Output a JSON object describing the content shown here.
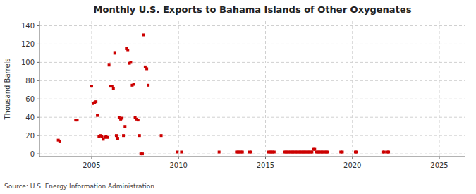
{
  "chart_data": {
    "type": "scatter",
    "title": "Monthly U.S. Exports to Bahama Islands of Other Oxygenates",
    "ylabel": "Thousand Barrels",
    "annotations": [
      "Source: U.S. Energy Information Administration"
    ],
    "color": "#cc0000",
    "marker": "square",
    "grid": true,
    "xlim": [
      2002.0,
      2026.5
    ],
    "ylim": [
      -3,
      145
    ],
    "xticks": [
      2005,
      2010,
      2015,
      2020,
      2025
    ],
    "yticks": [
      0,
      20,
      40,
      60,
      80,
      100,
      120,
      140
    ],
    "x": [
      2003.08,
      2003.17,
      2004.08,
      2004.17,
      2005.0,
      2005.08,
      2005.17,
      2005.25,
      2005.33,
      2005.42,
      2005.5,
      2005.58,
      2005.67,
      2005.75,
      2005.83,
      2005.92,
      2006.0,
      2006.08,
      2006.17,
      2006.25,
      2006.33,
      2006.42,
      2006.5,
      2006.58,
      2006.67,
      2006.75,
      2006.83,
      2006.92,
      2007.0,
      2007.08,
      2007.17,
      2007.25,
      2007.33,
      2007.42,
      2007.5,
      2007.58,
      2007.67,
      2007.75,
      2007.83,
      2007.92,
      2008.0,
      2008.08,
      2008.17,
      2008.25,
      2009.0,
      2009.92,
      2010.17,
      2012.33,
      2013.33,
      2013.42,
      2013.5,
      2013.58,
      2013.67,
      2014.08,
      2014.17,
      2015.17,
      2015.25,
      2015.33,
      2015.42,
      2015.5,
      2016.08,
      2016.17,
      2016.25,
      2016.33,
      2016.42,
      2016.5,
      2016.58,
      2016.67,
      2016.75,
      2016.83,
      2016.92,
      2017.0,
      2017.08,
      2017.17,
      2017.25,
      2017.33,
      2017.42,
      2017.5,
      2017.58,
      2017.67,
      2017.75,
      2017.83,
      2017.92,
      2018.0,
      2018.08,
      2018.17,
      2018.25,
      2018.33,
      2018.42,
      2018.5,
      2018.58,
      2019.33,
      2019.42,
      2020.17,
      2020.25,
      2021.75,
      2021.83,
      2022.0,
      2022.08
    ],
    "values": [
      15,
      14,
      37,
      37,
      74,
      55,
      56,
      57,
      42,
      19,
      20,
      19,
      16,
      18,
      19,
      18,
      97,
      74,
      74,
      71,
      110,
      20,
      17,
      40,
      38,
      39,
      20,
      30,
      115,
      113,
      99,
      100,
      75,
      76,
      40,
      38,
      37,
      20,
      0,
      0,
      130,
      95,
      93,
      75,
      20,
      2,
      2,
      2,
      2,
      2,
      2,
      2,
      2,
      2,
      2,
      2,
      2,
      2,
      2,
      2,
      2,
      2,
      2,
      2,
      2,
      2,
      2,
      2,
      2,
      2,
      2,
      2,
      2,
      2,
      2,
      2,
      2,
      2,
      2,
      2,
      5,
      5,
      2,
      2,
      2,
      2,
      2,
      2,
      2,
      2,
      2,
      2,
      2,
      2,
      2,
      2,
      2,
      2,
      2
    ]
  }
}
